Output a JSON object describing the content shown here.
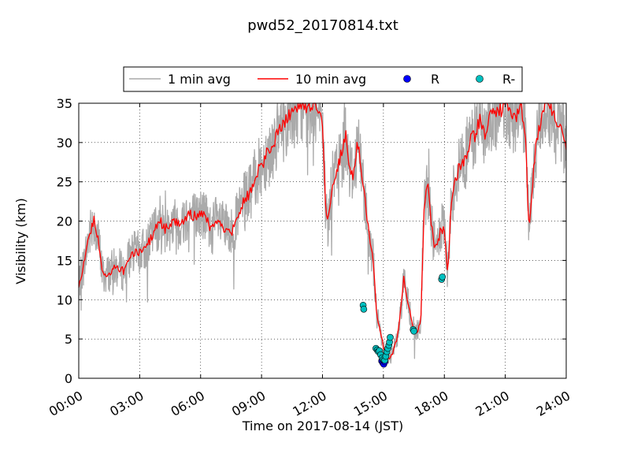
{
  "chart_data": {
    "type": "line",
    "title": "pwd52_20170814.txt",
    "xlabel": "Time on 2017-08-14 (JST)",
    "ylabel": "Visibility (km)",
    "xlim": [
      "00:00",
      "24:00"
    ],
    "ylim": [
      0,
      35
    ],
    "grid": true,
    "legend_position": "top-center",
    "x_ticks": [
      "00:00",
      "03:00",
      "06:00",
      "09:00",
      "12:00",
      "15:00",
      "18:00",
      "21:00",
      "24:00"
    ],
    "y_ticks": [
      "0",
      "5",
      "10",
      "15",
      "20",
      "25",
      "30",
      "35"
    ],
    "legend": [
      "1 min avg",
      "10 min avg",
      "R",
      "R-"
    ],
    "colors": {
      "one_min": "#aaaaaa",
      "ten_min": "#ff0000",
      "R": "#0000ff",
      "R_minus": "#00bfbf"
    },
    "series": [
      {
        "name": "10 min avg",
        "x": [
          "00:00",
          "00:15",
          "00:30",
          "00:45",
          "01:00",
          "01:10",
          "01:15",
          "01:30",
          "01:45",
          "02:00",
          "02:15",
          "02:30",
          "02:45",
          "03:00",
          "03:15",
          "03:30",
          "03:45",
          "04:00",
          "04:15",
          "04:30",
          "04:45",
          "05:00",
          "05:15",
          "05:30",
          "05:45",
          "06:00",
          "06:15",
          "06:30",
          "06:45",
          "07:00",
          "07:15",
          "07:30",
          "07:45",
          "08:00",
          "08:15",
          "08:30",
          "08:45",
          "09:00",
          "09:15",
          "09:30",
          "09:45",
          "10:00",
          "10:15",
          "10:30",
          "10:45",
          "11:00",
          "11:15",
          "11:30",
          "11:45",
          "12:00",
          "12:10",
          "12:15",
          "12:30",
          "12:45",
          "13:00",
          "13:10",
          "13:20",
          "13:30",
          "13:45",
          "14:00",
          "14:10",
          "14:20",
          "14:30",
          "14:40",
          "14:50",
          "15:00",
          "15:10",
          "15:20",
          "15:30",
          "15:40",
          "15:50",
          "16:00",
          "16:10",
          "16:20",
          "16:30",
          "16:40",
          "16:50",
          "17:00",
          "17:10",
          "17:20",
          "17:30",
          "17:40",
          "17:50",
          "18:00",
          "18:10",
          "18:20",
          "18:30",
          "18:45",
          "19:00",
          "19:15",
          "19:30",
          "19:45",
          "20:00",
          "20:15",
          "20:30",
          "20:45",
          "21:00",
          "21:15",
          "21:30",
          "21:45",
          "22:00",
          "22:10",
          "22:20",
          "22:30",
          "22:45",
          "23:00",
          "23:15",
          "23:30",
          "23:45",
          "24:00"
        ],
        "values": [
          12,
          14.5,
          18,
          20,
          17,
          13.5,
          13,
          13.5,
          14,
          14,
          13.5,
          15.5,
          16,
          16,
          16.5,
          17.5,
          19,
          20,
          19,
          19.5,
          20,
          19.5,
          20.5,
          21,
          20.5,
          21,
          20.5,
          19,
          20,
          19.5,
          19,
          18.5,
          20,
          22,
          23,
          24,
          26,
          27,
          28.5,
          29,
          31,
          32,
          33,
          34,
          34.5,
          35,
          34,
          35,
          34,
          32,
          21,
          20,
          25,
          27,
          29,
          31,
          27,
          26,
          30,
          25,
          21,
          18,
          15,
          8,
          6,
          4,
          3,
          2.5,
          3.5,
          5,
          8,
          13,
          10,
          8,
          6,
          6,
          7,
          21,
          25,
          20,
          17,
          17,
          19,
          19,
          13,
          22,
          25,
          27,
          28,
          30,
          31,
          33,
          31,
          33,
          34,
          34,
          35,
          34,
          33,
          35,
          30,
          19,
          24,
          30,
          33,
          35,
          34,
          33,
          32,
          29
        ]
      },
      {
        "name": "R",
        "x": [
          "14:55",
          "14:58",
          "15:01",
          "15:04"
        ],
        "values": [
          2.2,
          2.0,
          1.8,
          2.1
        ]
      },
      {
        "name": "R-",
        "x": [
          "14:00",
          "14:02",
          "14:38",
          "14:42",
          "14:45",
          "14:48",
          "14:52",
          "14:56",
          "15:00",
          "15:04",
          "15:07",
          "15:10",
          "15:13",
          "15:16",
          "15:18",
          "15:20",
          "16:28",
          "16:30",
          "17:52",
          "17:54"
        ],
        "values": [
          9.3,
          8.8,
          3.8,
          3.6,
          3.4,
          3.5,
          3.0,
          2.6,
          2.4,
          2.3,
          2.8,
          3.4,
          3.8,
          4.2,
          4.6,
          5.2,
          6.2,
          6.0,
          12.6,
          12.9
        ]
      }
    ]
  }
}
